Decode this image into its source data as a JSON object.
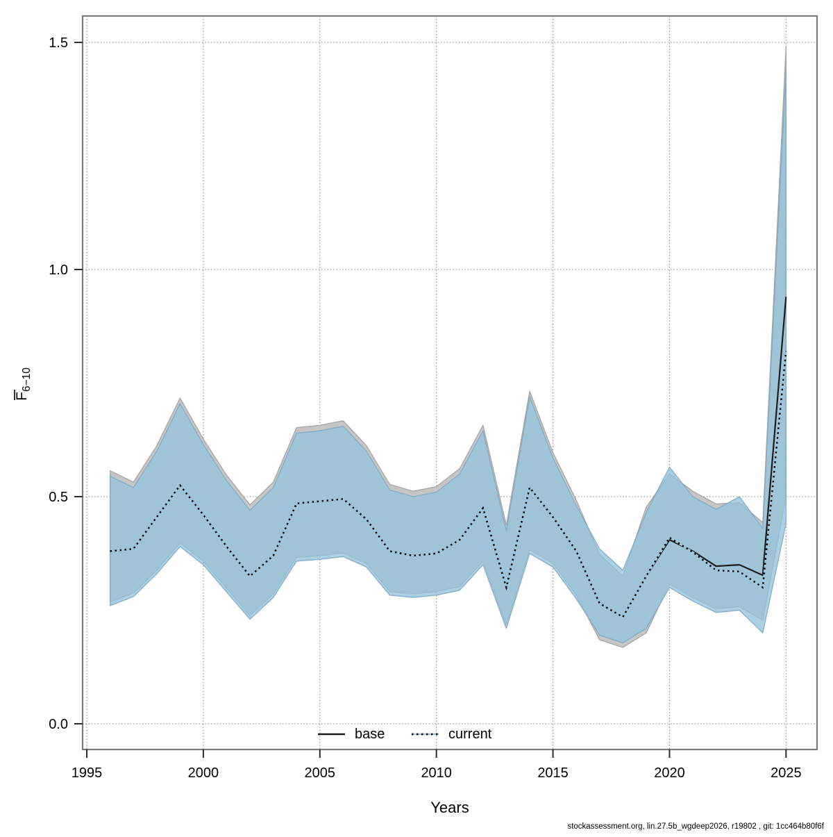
{
  "page": {
    "background": "#ffffff"
  },
  "footer": {
    "text": "stockassessment.org, lin.27.5b_wgdeep2026, r19802 , git: 1cc464b80f6f"
  },
  "chart_data": {
    "type": "line",
    "title": "",
    "xlabel": "Years",
    "ylabel": "F̄6−10",
    "ylabel_main": "F",
    "ylabel_sub": "6−10",
    "grid": "dotted",
    "legend_position": "bottom-center-inside",
    "xlim": [
      1994.82,
      2026.33
    ],
    "ylim": [
      -0.0566,
      1.5582
    ],
    "x_ticks": [
      {
        "value": 1995,
        "label": "1995"
      },
      {
        "value": 2000,
        "label": "2000"
      },
      {
        "value": 2005,
        "label": "2005"
      },
      {
        "value": 2010,
        "label": "2010"
      },
      {
        "value": 2015,
        "label": "2015"
      },
      {
        "value": 2020,
        "label": "2020"
      },
      {
        "value": 2025,
        "label": "2025"
      }
    ],
    "y_ticks": [
      {
        "value": 0.0,
        "label": "0.0"
      },
      {
        "value": 0.5,
        "label": "0.5"
      },
      {
        "value": 1.0,
        "label": "1.0"
      },
      {
        "value": 1.5,
        "label": "1.5"
      }
    ],
    "x": [
      1996,
      1997,
      1998,
      1999,
      2000,
      2001,
      2002,
      2003,
      2004,
      2005,
      2006,
      2007,
      2008,
      2009,
      2010,
      2011,
      2012,
      2013,
      2014,
      2015,
      2016,
      2017,
      2018,
      2019,
      2020,
      2021,
      2022,
      2023,
      2024,
      2025
    ],
    "series": [
      {
        "name": "base",
        "line_style": "solid",
        "line_color": "#1c1c1c",
        "band_color": "#c6c6c6",
        "band_edge_color": "#a6a6a6",
        "values": [
          0.38,
          0.385,
          0.455,
          0.525,
          0.46,
          0.39,
          0.325,
          0.37,
          0.485,
          0.49,
          0.495,
          0.45,
          0.38,
          0.37,
          0.375,
          0.405,
          0.475,
          0.3,
          0.52,
          0.455,
          0.38,
          0.265,
          0.235,
          0.325,
          0.405,
          0.38,
          0.347,
          0.35,
          0.327,
          0.94
        ],
        "lo": [
          0.268,
          0.288,
          0.338,
          0.398,
          0.358,
          0.298,
          0.238,
          0.286,
          0.366,
          0.37,
          0.376,
          0.353,
          0.291,
          0.286,
          0.291,
          0.302,
          0.358,
          0.218,
          0.383,
          0.353,
          0.283,
          0.185,
          0.168,
          0.2,
          0.308,
          0.278,
          0.253,
          0.258,
          0.228,
          0.5
        ],
        "hi": [
          0.557,
          0.532,
          0.612,
          0.717,
          0.627,
          0.547,
          0.482,
          0.532,
          0.652,
          0.657,
          0.667,
          0.612,
          0.527,
          0.512,
          0.522,
          0.562,
          0.657,
          0.437,
          0.732,
          0.597,
          0.492,
          0.373,
          0.325,
          0.477,
          0.55,
          0.512,
          0.484,
          0.487,
          0.443,
          1.49
        ]
      },
      {
        "name": "current",
        "line_style": "dotted",
        "line_color": "#000000",
        "line_underlay_color": "#9ecae1",
        "band_color": "rgba(148,193,219,0.78)",
        "band_edge_color": "rgba(125,168,196,0.9)",
        "values": [
          0.38,
          0.385,
          0.455,
          0.525,
          0.46,
          0.39,
          0.325,
          0.37,
          0.485,
          0.49,
          0.495,
          0.45,
          0.38,
          0.37,
          0.375,
          0.405,
          0.475,
          0.3,
          0.52,
          0.455,
          0.38,
          0.265,
          0.235,
          0.325,
          0.41,
          0.378,
          0.338,
          0.335,
          0.3,
          0.82
        ],
        "lo": [
          0.26,
          0.28,
          0.33,
          0.39,
          0.35,
          0.29,
          0.23,
          0.278,
          0.358,
          0.362,
          0.368,
          0.345,
          0.283,
          0.278,
          0.283,
          0.294,
          0.35,
          0.21,
          0.375,
          0.345,
          0.275,
          0.195,
          0.178,
          0.21,
          0.3,
          0.27,
          0.245,
          0.25,
          0.2,
          0.44
        ],
        "hi": [
          0.545,
          0.52,
          0.6,
          0.705,
          0.615,
          0.535,
          0.47,
          0.52,
          0.64,
          0.645,
          0.655,
          0.6,
          0.515,
          0.5,
          0.51,
          0.55,
          0.645,
          0.425,
          0.72,
          0.585,
          0.48,
          0.385,
          0.338,
          0.465,
          0.565,
          0.5,
          0.472,
          0.5,
          0.43,
          1.44
        ]
      }
    ]
  },
  "style": {
    "border_color": "#7a7a7a",
    "grid_color": "#7d7d7d",
    "tick_color": "#2b2b2b",
    "text_color": "#000000"
  }
}
